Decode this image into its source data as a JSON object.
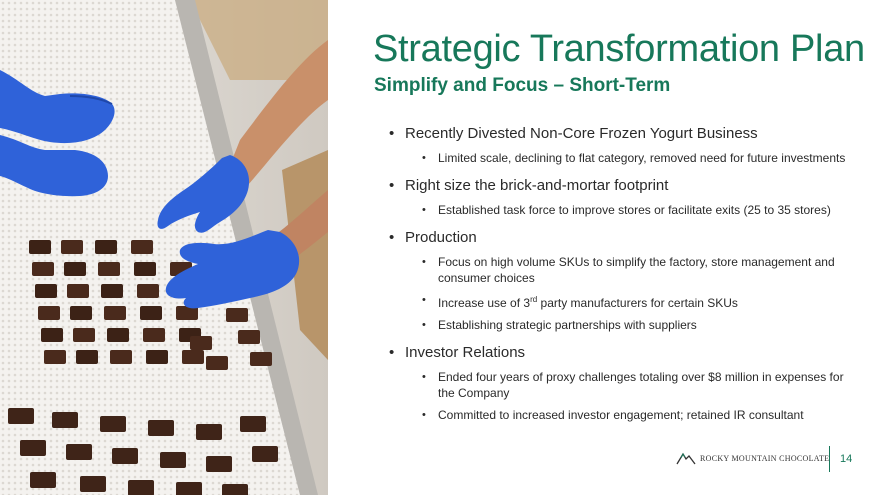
{
  "slide": {
    "title": "Strategic Transformation Plan",
    "subtitle": "Simplify and Focus – Short-Term",
    "bullet_symbol": "•",
    "sections": [
      {
        "heading": "Recently Divested Non-Core Frozen Yogurt Business",
        "items": [
          "Limited scale, declining to flat category, removed need for future investments"
        ]
      },
      {
        "heading": "Right size the brick-and-mortar footprint",
        "items": [
          "Established task force to improve stores or facilitate exits (25 to 35 stores)"
        ]
      },
      {
        "heading": "Production",
        "items": [
          "Focus on high volume SKUs to simplify the factory, store management and consumer choices",
          {
            "before": "Increase use of 3",
            "sup": "rd",
            "after": " party manufacturers for certain SKUs"
          },
          "Establishing strategic partnerships with suppliers"
        ]
      },
      {
        "heading": "Investor Relations",
        "items": [
          "Ended four years of proxy challenges totaling over $8 million in expenses for the Company",
          "Committed to increased investor engagement; retained IR consultant"
        ]
      }
    ]
  },
  "footer": {
    "company": "ROCKY MOUNTAIN CHOCOLATE",
    "page_number": "14"
  },
  "colors": {
    "accent_green": "#17785a",
    "glove_blue": "#2f62d9",
    "chocolate": "#4a2a1c"
  }
}
